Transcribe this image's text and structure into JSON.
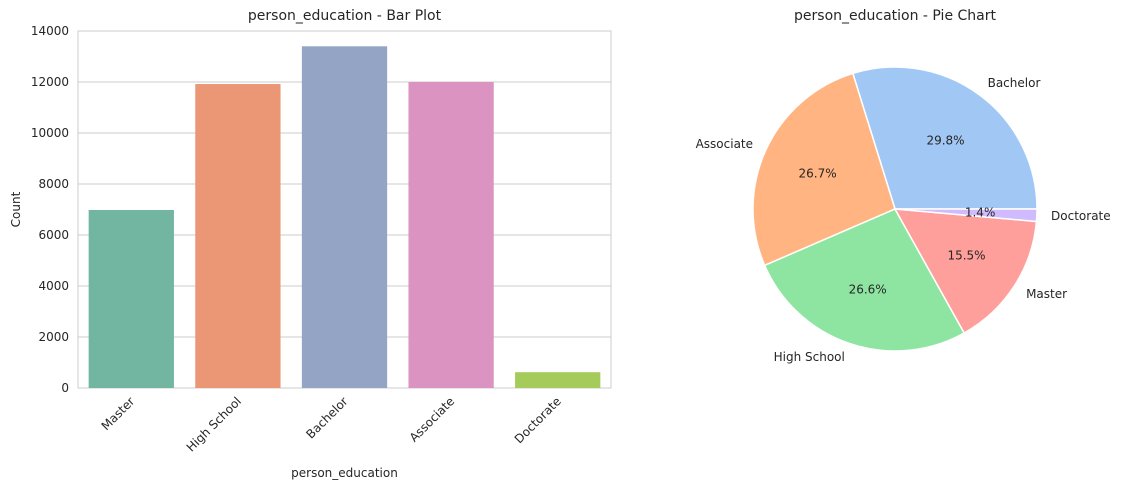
{
  "colors": {
    "bar_palette": [
      "#72b5a0",
      "#eb9675",
      "#93a4c4",
      "#db93c1",
      "#a5cc5a"
    ],
    "pie_palette": [
      "#a1c8f5",
      "#ffb482",
      "#8de5a1",
      "#ff9f9b",
      "#d0bbff"
    ],
    "grid": "#cccccc",
    "axis_edge": "#cccccc"
  },
  "chart_data": [
    {
      "type": "bar",
      "title": "person_education - Bar Plot",
      "xlabel": "person_education",
      "ylabel": "Count",
      "categories": [
        "Master",
        "High School",
        "Bachelor",
        "Associate",
        "Doctorate"
      ],
      "values": [
        6980,
        11920,
        13400,
        12000,
        620
      ],
      "ylim": [
        0,
        14000
      ],
      "yticks": [
        0,
        2000,
        4000,
        6000,
        8000,
        10000,
        12000,
        14000
      ],
      "ytick_labels": [
        "0",
        "2000",
        "4000",
        "6000",
        "8000",
        "10000",
        "12000",
        "14000"
      ],
      "grid": true
    },
    {
      "type": "pie",
      "title": "person_education - Pie Chart",
      "labels": [
        "Bachelor",
        "Associate",
        "High School",
        "Master",
        "Doctorate"
      ],
      "values": [
        29.8,
        26.7,
        26.6,
        15.5,
        1.4
      ],
      "value_labels": [
        "29.8%",
        "26.7%",
        "26.6%",
        "15.5%",
        "1.4%"
      ],
      "start_angle": 0,
      "direction": "counterclockwise"
    }
  ]
}
